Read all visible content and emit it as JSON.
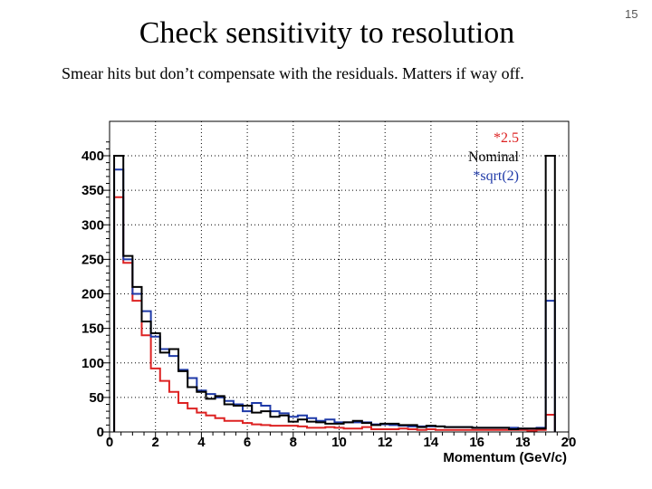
{
  "slide": {
    "title": "Check sensitivity to resolution",
    "subtitle": "Smear hits but don’t compensate with the residuals. Matters if way off.",
    "page_number": "15"
  },
  "chart_data": {
    "type": "histogram",
    "xlabel": "Momentum (GeV/c)",
    "ylabel": "",
    "xlim": [
      0,
      20
    ],
    "ylim": [
      0,
      400
    ],
    "x_ticks": [
      0,
      2,
      4,
      6,
      8,
      10,
      12,
      14,
      16,
      18,
      20
    ],
    "y_ticks": [
      0,
      50,
      100,
      150,
      200,
      250,
      300,
      350,
      400
    ],
    "grid": true,
    "legend": {
      "placement": "top-right",
      "entries": [
        "*2.5",
        "Nominal",
        "*sqrt(2)"
      ]
    },
    "bin_width": 0.4,
    "bin_start": 0.2,
    "series": [
      {
        "name": "*2.5",
        "color": "#dd2222",
        "values": [
          340,
          245,
          190,
          140,
          92,
          74,
          58,
          42,
          34,
          28,
          24,
          20,
          16,
          16,
          13,
          11,
          10,
          9,
          9,
          9,
          8,
          6,
          6,
          7,
          6,
          5,
          5,
          7,
          4,
          4,
          4,
          5,
          4,
          3,
          4,
          3,
          3,
          3,
          3,
          3,
          3,
          3,
          3,
          3,
          3,
          2,
          3,
          25
        ]
      },
      {
        "name": "Nominal",
        "color": "#000000",
        "values": [
          400,
          255,
          210,
          160,
          143,
          115,
          120,
          88,
          65,
          58,
          48,
          52,
          40,
          38,
          38,
          28,
          30,
          22,
          24,
          15,
          18,
          15,
          14,
          12,
          12,
          14,
          16,
          13,
          10,
          12,
          12,
          10,
          10,
          7,
          9,
          8,
          7,
          7,
          7,
          6,
          6,
          6,
          6,
          4,
          5,
          5,
          5,
          400
        ]
      },
      {
        "name": "*sqrt(2)",
        "color": "#1f3aa8",
        "values": [
          380,
          250,
          200,
          175,
          138,
          120,
          110,
          90,
          78,
          60,
          55,
          50,
          45,
          40,
          30,
          42,
          38,
          30,
          27,
          22,
          24,
          20,
          16,
          18,
          14,
          14,
          14,
          14,
          11,
          11,
          10,
          9,
          8,
          8,
          8,
          8,
          7,
          7,
          7,
          6,
          6,
          6,
          6,
          6,
          5,
          5,
          6,
          190
        ]
      }
    ]
  }
}
